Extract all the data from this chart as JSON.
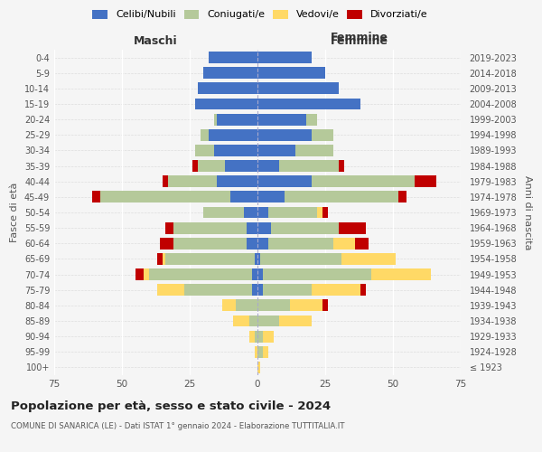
{
  "age_groups": [
    "100+",
    "95-99",
    "90-94",
    "85-89",
    "80-84",
    "75-79",
    "70-74",
    "65-69",
    "60-64",
    "55-59",
    "50-54",
    "45-49",
    "40-44",
    "35-39",
    "30-34",
    "25-29",
    "20-24",
    "15-19",
    "10-14",
    "5-9",
    "0-4"
  ],
  "birth_years": [
    "≤ 1923",
    "1924-1928",
    "1929-1933",
    "1934-1938",
    "1939-1943",
    "1944-1948",
    "1949-1953",
    "1954-1958",
    "1959-1963",
    "1964-1968",
    "1969-1973",
    "1974-1978",
    "1979-1983",
    "1984-1988",
    "1989-1993",
    "1994-1998",
    "1999-2003",
    "2004-2008",
    "2009-2013",
    "2014-2018",
    "2019-2023"
  ],
  "colors": {
    "celibi": "#4472c4",
    "coniugati": "#b5c99a",
    "vedovi": "#ffd966",
    "divorziati": "#c00000"
  },
  "maschi": {
    "celibi": [
      0,
      0,
      0,
      0,
      0,
      2,
      2,
      1,
      4,
      4,
      5,
      10,
      15,
      12,
      16,
      18,
      15,
      23,
      22,
      20,
      18
    ],
    "coniugati": [
      0,
      0,
      1,
      3,
      8,
      25,
      38,
      33,
      27,
      27,
      15,
      48,
      18,
      10,
      7,
      3,
      1,
      0,
      0,
      0,
      0
    ],
    "vedovi": [
      0,
      1,
      2,
      6,
      5,
      10,
      2,
      1,
      0,
      0,
      0,
      0,
      0,
      0,
      0,
      0,
      0,
      0,
      0,
      0,
      0
    ],
    "divorziati": [
      0,
      0,
      0,
      0,
      0,
      0,
      3,
      2,
      5,
      3,
      0,
      3,
      2,
      2,
      0,
      0,
      0,
      0,
      0,
      0,
      0
    ]
  },
  "femmine": {
    "celibi": [
      0,
      0,
      0,
      0,
      0,
      2,
      2,
      1,
      4,
      5,
      4,
      10,
      20,
      8,
      14,
      20,
      18,
      38,
      30,
      25,
      20
    ],
    "coniugati": [
      0,
      2,
      2,
      8,
      12,
      18,
      40,
      30,
      24,
      25,
      18,
      42,
      38,
      22,
      14,
      8,
      4,
      0,
      0,
      0,
      0
    ],
    "vedovi": [
      1,
      2,
      4,
      12,
      12,
      18,
      22,
      20,
      8,
      0,
      2,
      0,
      0,
      0,
      0,
      0,
      0,
      0,
      0,
      0,
      0
    ],
    "divorziati": [
      0,
      0,
      0,
      0,
      2,
      2,
      0,
      0,
      5,
      10,
      2,
      3,
      8,
      2,
      0,
      0,
      0,
      0,
      0,
      0,
      0
    ]
  },
  "xlim": 75,
  "title": "Popolazione per età, sesso e stato civile - 2024",
  "subtitle": "COMUNE DI SANARICA (LE) - Dati ISTAT 1° gennaio 2024 - Elaborazione TUTTITALIA.IT",
  "ylabel_left": "Fasce di età",
  "ylabel_right": "Anni di nascita",
  "xlabel_maschi": "Maschi",
  "xlabel_femmine": "Femmine",
  "legend_labels": [
    "Celibi/Nubili",
    "Coniugati/e",
    "Vedovi/e",
    "Divorziati/e"
  ],
  "bg_color": "#f5f5f5"
}
